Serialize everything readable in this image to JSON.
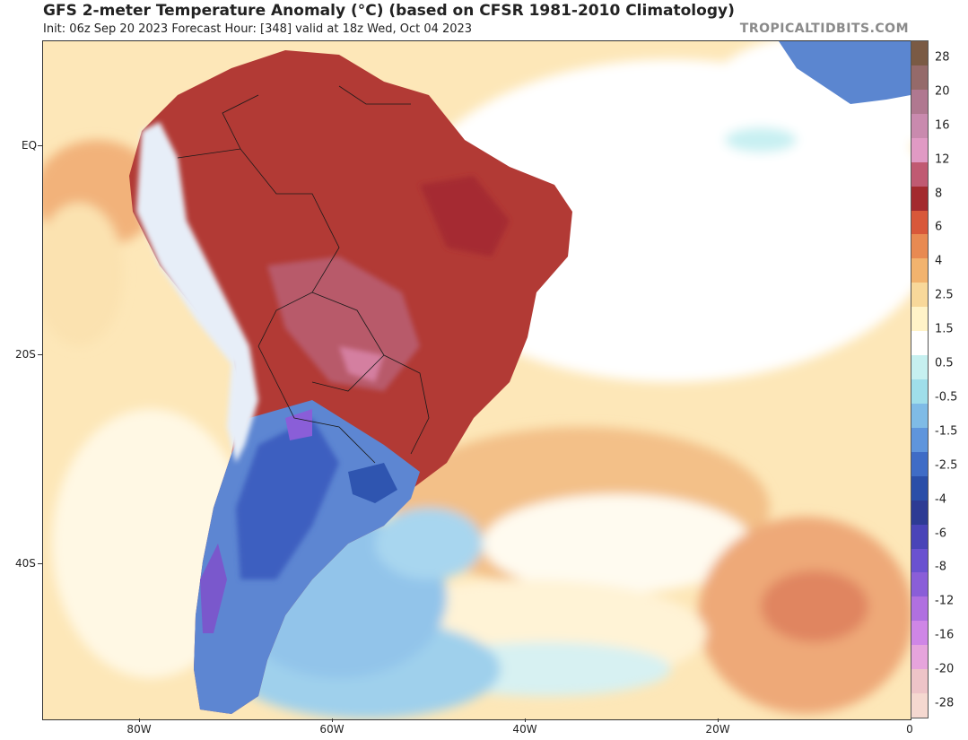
{
  "header": {
    "title": "GFS 2-meter Temperature Anomaly (°C) (based on CFSR 1981-2010 Climatology)",
    "subtitle": "Init: 06z Sep 20 2023   Forecast Hour: [348]   valid at 18z Wed, Oct 04 2023",
    "credit": "TROPICALTIDBITS.COM"
  },
  "map": {
    "region": "South America and South Atlantic",
    "lat_labels": [
      "EQ",
      "20S",
      "40S"
    ],
    "lon_labels": [
      "80W",
      "60W",
      "40W",
      "20W",
      "0"
    ]
  },
  "colorbar": {
    "labels": [
      "28",
      "20",
      "16",
      "12",
      "8",
      "6",
      "4",
      "2.5",
      "1.5",
      "0.5",
      "-0.5",
      "-1.5",
      "-2.5",
      "-4",
      "-6",
      "-8",
      "-12",
      "-16",
      "-20",
      "-28"
    ],
    "colors": [
      "#7a5a44",
      "#956a6a",
      "#b07890",
      "#c98aae",
      "#e09ac4",
      "#c05a72",
      "#a32a2e",
      "#d8583a",
      "#e88a52",
      "#f2b36e",
      "#f8d89a",
      "#fff3c8",
      "#ffffff",
      "#c6f0f0",
      "#9fdeea",
      "#7fbbe6",
      "#5f95dc",
      "#3f6cc6",
      "#2a4ea8",
      "#2d3b94",
      "#4a44b8",
      "#6a52d0",
      "#8a5ed8",
      "#b070e0",
      "#cf86e6",
      "#e6a4dc",
      "#eec4c8",
      "#f5d8d0"
    ]
  }
}
